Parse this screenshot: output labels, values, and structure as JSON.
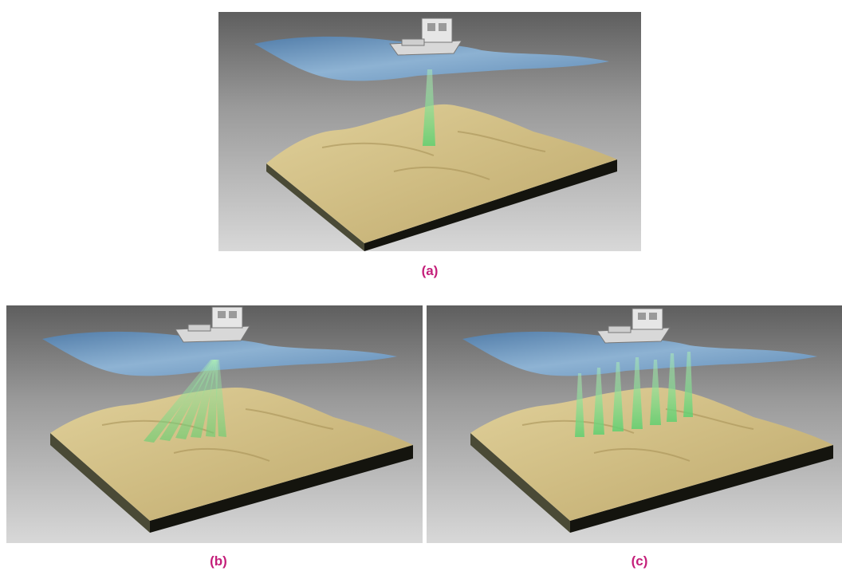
{
  "colors": {
    "caption": "#c41f7a",
    "water": "#6f9ec9",
    "sand": "#d6c48a",
    "block_side": "#1a1a12",
    "beam": "#7ed58a"
  },
  "panels": [
    {
      "caption": "(a)",
      "beam_type": "single-beam"
    },
    {
      "caption": "(b)",
      "beam_type": "multibeam-fan"
    },
    {
      "caption": "(c)",
      "beam_type": "multi-transducer"
    }
  ]
}
